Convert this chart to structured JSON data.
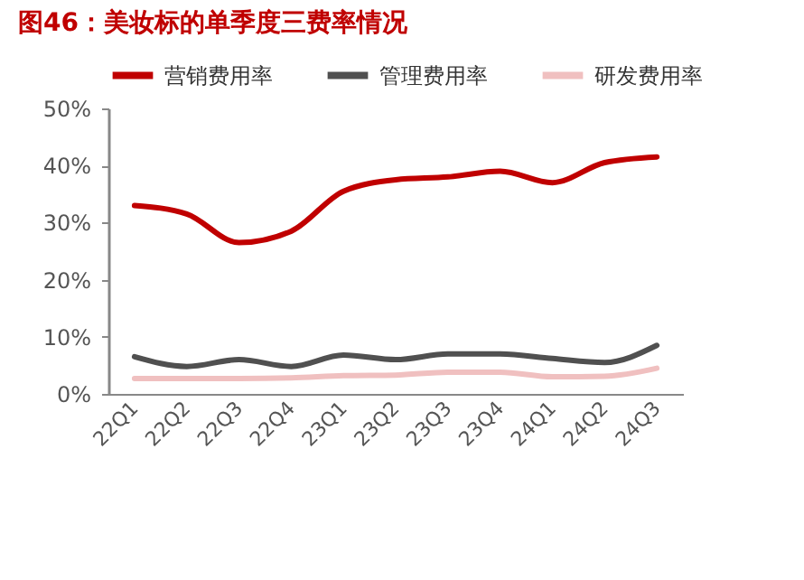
{
  "chart_data": {
    "type": "line",
    "title": "图46：美妆标的单季度三费率情况",
    "categories": [
      "22Q1",
      "22Q2",
      "22Q3",
      "22Q4",
      "23Q1",
      "23Q2",
      "23Q3",
      "23Q4",
      "24Q1",
      "24Q2",
      "24Q3"
    ],
    "series": [
      {
        "name": "营销费用率",
        "color": "#c00000",
        "values": [
          33,
          31.5,
          26.5,
          28.5,
          35.5,
          37.5,
          38,
          39,
          37,
          40.5,
          41.5
        ]
      },
      {
        "name": "管理费用率",
        "color": "#505050",
        "values": [
          6.5,
          4.8,
          6,
          4.8,
          6.8,
          6,
          7,
          7,
          6.2,
          5.5,
          8.5
        ]
      },
      {
        "name": "研发费用率",
        "color": "#f0c0c0",
        "values": [
          2.7,
          2.7,
          2.7,
          2.8,
          3.2,
          3.3,
          3.8,
          3.8,
          3.0,
          3.1,
          4.5
        ]
      }
    ],
    "ylim": [
      0,
      50
    ],
    "yticks": [
      {
        "value": 0,
        "label": "0%"
      },
      {
        "value": 10,
        "label": "10%"
      },
      {
        "value": 20,
        "label": "20%"
      },
      {
        "value": 30,
        "label": "30%"
      },
      {
        "value": 40,
        "label": "40%"
      },
      {
        "value": 50,
        "label": "50%"
      }
    ],
    "grid": false,
    "legend": "top",
    "marker": "none",
    "line_style": "solid"
  }
}
